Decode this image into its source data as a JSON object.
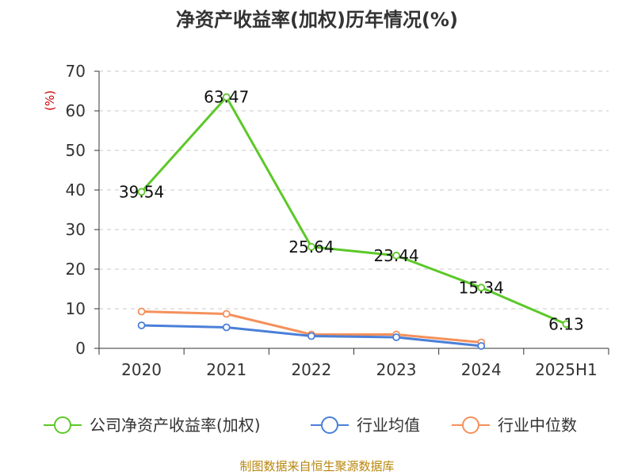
{
  "chart_data": {
    "type": "line",
    "title": "净资产收益率(加权)历年情况(%)",
    "ylabel": "(%)",
    "xlabel": "",
    "categories": [
      "2020",
      "2021",
      "2022",
      "2023",
      "2024",
      "2025H1"
    ],
    "ylim": [
      0,
      70
    ],
    "yticks": [
      0,
      10,
      20,
      30,
      40,
      50,
      60,
      70
    ],
    "grid": "horizontal dashed",
    "legend_position": "bottom",
    "series": [
      {
        "name": "公司净资产收益率(加权)",
        "color": "#5cc829",
        "values": [
          39.54,
          63.47,
          25.64,
          23.44,
          15.34,
          6.13
        ],
        "labels": true
      },
      {
        "name": "行业均值",
        "color": "#4a7fd8",
        "values": [
          5.8,
          5.3,
          3.1,
          2.8,
          0.6,
          null
        ],
        "labels": false
      },
      {
        "name": "行业中位数",
        "color": "#f4905a",
        "values": [
          9.3,
          8.7,
          3.5,
          3.5,
          1.5,
          null
        ],
        "labels": false
      }
    ]
  },
  "source_note": "制图数据来自恒生聚源数据库"
}
